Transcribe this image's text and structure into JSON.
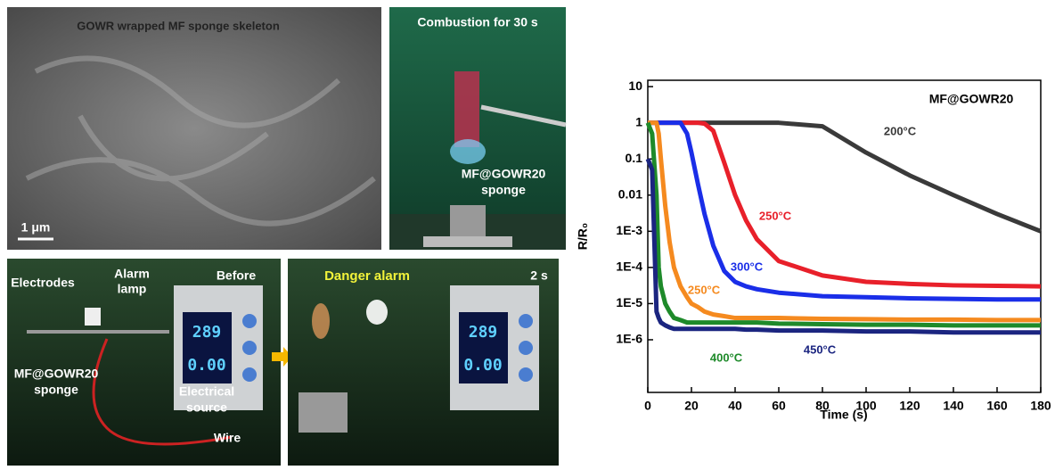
{
  "sem": {
    "caption": "GOWR wrapped MF sponge skeleton",
    "scale_bar": "1 μm"
  },
  "combustion": {
    "caption": "Combustion for 30 s",
    "sample_label": [
      "MF@GOWR20",
      "sponge"
    ]
  },
  "before": {
    "caption": "Before",
    "electrodes": "Electrodes",
    "lamp": [
      "Alarm",
      "lamp"
    ],
    "sponge": [
      "MF@GOWR20",
      "sponge"
    ],
    "source": [
      "Electrical",
      "source"
    ],
    "wire": "Wire",
    "display": [
      "289",
      "0.00"
    ]
  },
  "after": {
    "caption": "2 s",
    "alarm": "Danger alarm",
    "display": [
      "289",
      "0.00"
    ]
  },
  "chart_data": {
    "type": "line",
    "annotation": "MF@GOWR20",
    "x_label": "Time (s)",
    "y_label": "R/R₀",
    "yscale": "log",
    "xlim": [
      0,
      180
    ],
    "xticks": [
      0,
      20,
      40,
      60,
      80,
      100,
      120,
      140,
      160,
      180
    ],
    "ylim": [
      3.5e-08,
      15
    ],
    "yticks": [
      10,
      1,
      0.1,
      0.01,
      {
        "value": 0.001,
        "label": "1E-3"
      },
      {
        "value": 0.0001,
        "label": "1E-4"
      },
      {
        "value": 1e-05,
        "label": "1E-5"
      },
      {
        "value": 1e-06,
        "label": "1E-6"
      }
    ],
    "x": [
      0,
      2,
      4,
      5,
      6,
      8,
      10,
      12,
      15,
      18,
      20,
      23,
      26,
      30,
      35,
      40,
      45,
      50,
      60,
      80,
      100,
      120,
      140,
      160,
      180
    ],
    "series": [
      {
        "name": "200°C",
        "color": "#3a3a3a",
        "values": [
          1,
          1,
          1,
          1,
          1,
          1,
          1,
          1,
          1,
          1,
          1,
          1,
          1,
          1,
          1,
          1,
          1,
          1,
          1,
          0.8,
          0.15,
          0.035,
          0.01,
          0.003,
          0.001
        ]
      },
      {
        "name": "250°C",
        "color": "#e8202a",
        "values": [
          1,
          1,
          1,
          1,
          1,
          1,
          1,
          1,
          1,
          1,
          1,
          1,
          0.95,
          0.6,
          0.08,
          0.01,
          0.002,
          0.0006,
          0.00015,
          6e-05,
          4e-05,
          3.5e-05,
          3.2e-05,
          3.1e-05,
          3e-05
        ]
      },
      {
        "name": "300°C",
        "color": "#1a2ee8",
        "values": [
          1,
          1,
          1,
          1,
          1,
          1,
          1,
          1,
          1,
          0.5,
          0.15,
          0.02,
          0.003,
          0.0004,
          8e-05,
          4e-05,
          3e-05,
          2.5e-05,
          2e-05,
          1.6e-05,
          1.5e-05,
          1.4e-05,
          1.35e-05,
          1.3e-05,
          1.3e-05
        ]
      },
      {
        "name": "250°C",
        "color": "#f58a1f",
        "values": [
          1,
          1,
          1,
          0.5,
          0.1,
          0.005,
          0.0005,
          0.0001,
          3e-05,
          1.5e-05,
          1e-05,
          8e-06,
          6e-06,
          5e-06,
          4.5e-06,
          4e-06,
          4e-06,
          4e-06,
          4e-06,
          3.8e-06,
          3.7e-06,
          3.6e-06,
          3.6e-06,
          3.5e-06,
          3.5e-06
        ]
      },
      {
        "name": "400°C",
        "color": "#1e8a2a",
        "values": [
          1,
          0.5,
          0.01,
          0.0001,
          3e-05,
          1e-05,
          6e-06,
          4e-06,
          3.5e-06,
          3e-06,
          3e-06,
          3e-06,
          3e-06,
          3e-06,
          3e-06,
          3e-06,
          3e-06,
          3e-06,
          2.8e-06,
          2.7e-06,
          2.6e-06,
          2.6e-06,
          2.5e-06,
          2.5e-06,
          2.5e-06
        ]
      },
      {
        "name": "450°C",
        "color": "#1b2580",
        "values": [
          0.1,
          0.05,
          6e-06,
          4e-06,
          3e-06,
          2.5e-06,
          2.2e-06,
          2e-06,
          2e-06,
          2e-06,
          2e-06,
          2e-06,
          2e-06,
          2e-06,
          2e-06,
          2e-06,
          1.9e-06,
          1.9e-06,
          1.8e-06,
          1.8e-06,
          1.7e-06,
          1.7e-06,
          1.6e-06,
          1.6e-06,
          1.6e-06
        ]
      }
    ]
  }
}
